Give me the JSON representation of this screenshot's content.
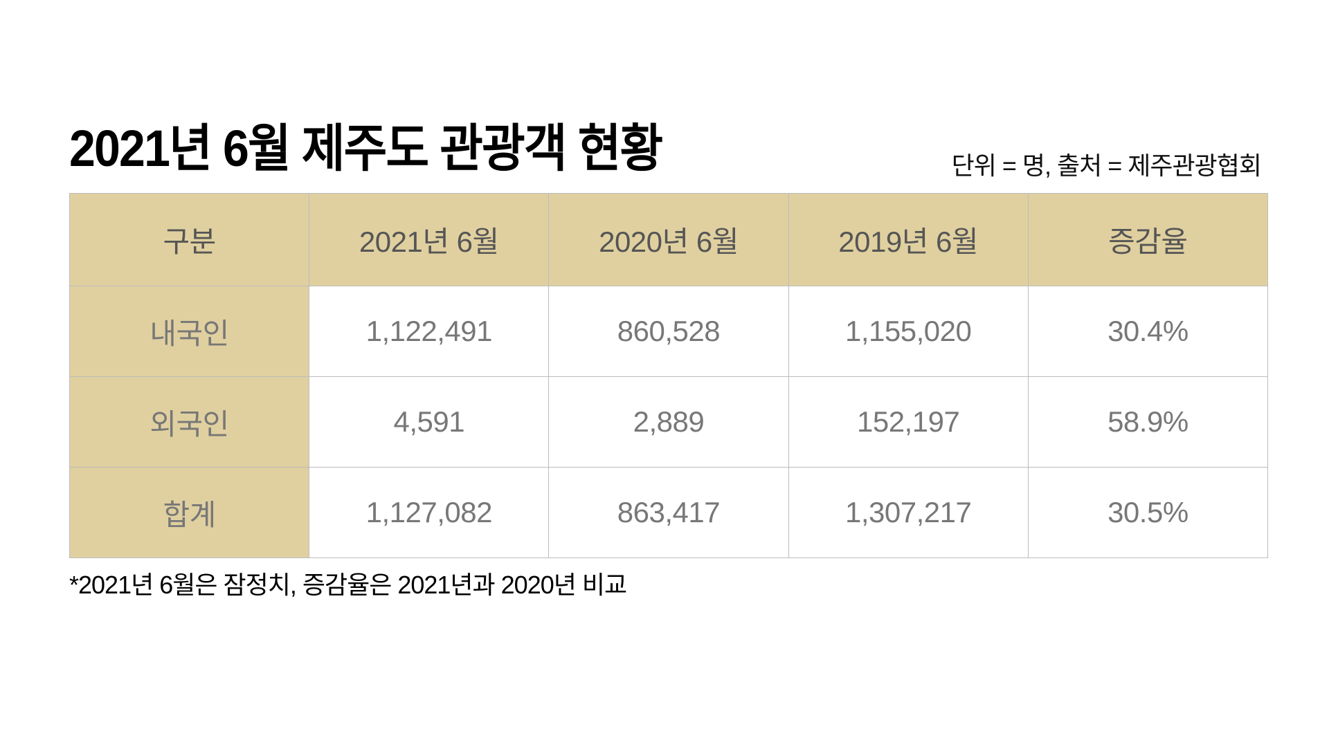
{
  "header": {
    "title": "2021년 6월 제주도 관광객 현황",
    "source_note": "단위 = 명, 출처 = 제주관광협회"
  },
  "table": {
    "columns": [
      "구분",
      "2021년 6월",
      "2020년 6월",
      "2019년 6월",
      "증감율"
    ],
    "rows": [
      {
        "label": "내국인",
        "values": [
          "1,122,491",
          "860,528",
          "1,155,020",
          "30.4%"
        ]
      },
      {
        "label": "외국인",
        "values": [
          "4,591",
          "2,889",
          "152,197",
          "58.9%"
        ]
      },
      {
        "label": "합계",
        "values": [
          "1,127,082",
          "863,417",
          "1,307,217",
          "30.5%"
        ]
      }
    ]
  },
  "footnote": "*2021년 6월은 잠정치, 증감율은 2021년과 2020년 비교",
  "colors": {
    "header_bg": "#E0D0A0",
    "border": "#BCBCBC",
    "header_text": "#555555",
    "body_text": "#777777"
  }
}
